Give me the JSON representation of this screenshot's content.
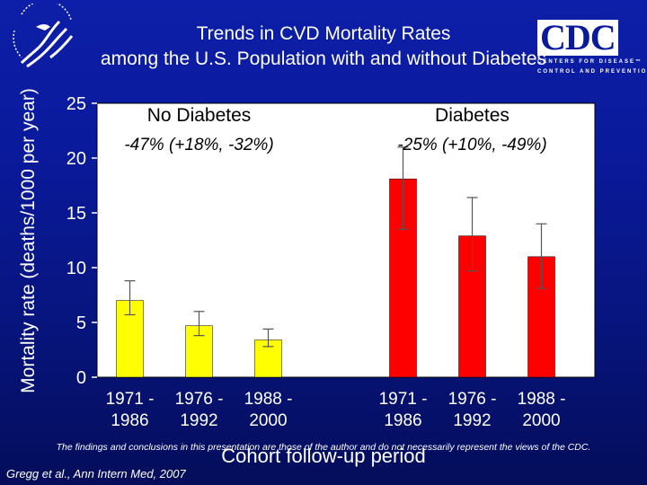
{
  "slide": {
    "title_line1": "Trends in CVD Mortality Rates",
    "title_line2": "among the U.S. Population with and without Diabetes",
    "logo_text": "CDC",
    "logo_subtitle_line1": "CENTERS FOR DISEASE™",
    "logo_subtitle_line2": "CONTROL AND PREVENTION",
    "footer_note": "The findings and conclusions in this presentation are those of the author and do not necessarily represent the views of the CDC.",
    "citation": "Gregg et al., Ann Intern Med, 2007"
  },
  "chart_data": {
    "type": "bar",
    "ylabel": "Mortality rate (deaths/1000 per year)",
    "xlabel": "Cohort follow-up period",
    "ylim": [
      0,
      25
    ],
    "yticks": [
      0,
      5,
      10,
      15,
      20,
      25
    ],
    "grid": false,
    "groups": [
      {
        "name": "No Diabetes",
        "change": "-47% (+18%, -32%)",
        "color": "#ffff00",
        "categories": [
          "1971 -\n1986",
          "1976 -\n1992",
          "1988 -\n2000"
        ],
        "values": [
          7.0,
          4.7,
          3.4
        ],
        "error_high": [
          8.8,
          6.0,
          4.4
        ],
        "error_low": [
          5.7,
          3.8,
          2.8
        ]
      },
      {
        "name": "Diabetes",
        "change": "-25% (+10%, -49%)",
        "color": "#ff0000",
        "categories": [
          "1971 -\n1986",
          "1976 -\n1992",
          "1988 -\n2000"
        ],
        "values": [
          18.1,
          12.9,
          11.0
        ],
        "error_high": [
          21.0,
          16.4,
          14.0
        ],
        "error_low": [
          13.5,
          9.7,
          8.1
        ]
      }
    ]
  }
}
